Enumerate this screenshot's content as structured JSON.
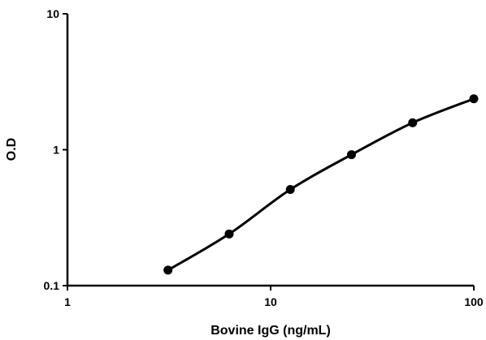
{
  "chart_data": {
    "type": "line",
    "xlabel": "Bovine IgG (ng/mL)",
    "ylabel": "O.D",
    "x_scale": "log",
    "y_scale": "log",
    "xlim": [
      1,
      100
    ],
    "ylim": [
      0.1,
      10
    ],
    "x_ticks": [
      {
        "value": 1,
        "label": "1"
      },
      {
        "value": 10,
        "label": "10"
      },
      {
        "value": 100,
        "label": "100"
      }
    ],
    "y_ticks": [
      {
        "value": 0.1,
        "label": "0.1"
      },
      {
        "value": 1,
        "label": "1"
      },
      {
        "value": 10,
        "label": "10"
      }
    ],
    "grid": false,
    "legend": "none",
    "series": [
      {
        "color": "#000000",
        "x": [
          3.125,
          6.25,
          12.5,
          25,
          50,
          100
        ],
        "y": [
          0.13,
          0.24,
          0.51,
          0.92,
          1.58,
          2.37
        ]
      }
    ]
  }
}
